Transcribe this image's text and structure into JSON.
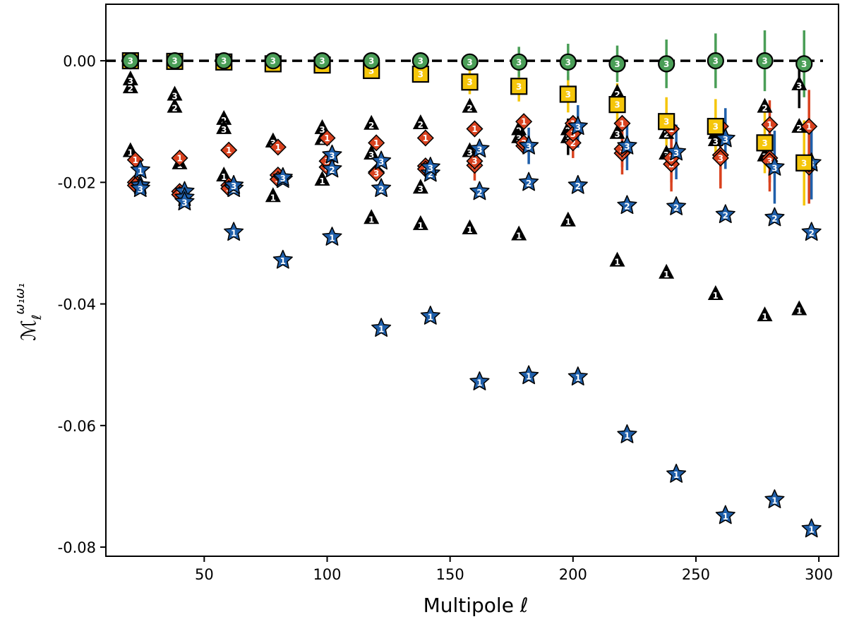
{
  "chart_data": {
    "type": "scatter",
    "title": "",
    "xlabel": "Multipole ℓ",
    "ylabel": "Mℓ^{ω1ω1}",
    "ylabel_main": "ℳ",
    "ylabel_sub": "ℓ",
    "ylabel_sup": "ω₁ω₁",
    "xlim": [
      10,
      308
    ],
    "ylim": [
      -0.0815,
      0.0093
    ],
    "xticks": [
      50,
      100,
      150,
      200,
      250,
      300
    ],
    "xtick_labels": [
      "50",
      "100",
      "150",
      "200",
      "250",
      "300"
    ],
    "yticks": [
      0.0,
      -0.02,
      -0.04,
      -0.06,
      -0.08
    ],
    "ytick_labels": [
      "0.00",
      "-0.02",
      "-0.04",
      "-0.06",
      "-0.08"
    ],
    "reference_line": {
      "y": 0.0,
      "style": "dashed",
      "color": "#000000"
    },
    "colors": {
      "black": "#000000",
      "red": "#d9421f",
      "blue": "#1f5faa",
      "yellow": "#f5c60a",
      "green": "#4a9e57"
    },
    "series": [
      {
        "name": "triangle-label-1",
        "marker": "triangle",
        "color": "#000000",
        "label": "1",
        "x": [
          20,
          40,
          58,
          78,
          98,
          118,
          138,
          158,
          178,
          198,
          218,
          238,
          258,
          278,
          292
        ],
        "y": [
          -0.0148,
          -0.0168,
          -0.0188,
          -0.0222,
          -0.0195,
          -0.0258,
          -0.0268,
          -0.0275,
          -0.0285,
          -0.0262,
          -0.0328,
          -0.0348,
          -0.0383,
          -0.0418,
          -0.0408
        ]
      },
      {
        "name": "triangle-label-2",
        "marker": "triangle",
        "color": "#000000",
        "label": "2",
        "x": [
          20,
          38,
          58,
          78,
          98,
          118,
          138,
          158,
          178,
          198,
          218,
          238,
          258,
          278,
          292
        ],
        "y": [
          -0.0043,
          -0.0075,
          -0.0095,
          -0.0132,
          -0.0128,
          -0.0103,
          -0.0102,
          -0.0075,
          -0.0112,
          -0.0112,
          -0.0052,
          -0.0118,
          -0.0118,
          -0.0075,
          -0.0108
        ],
        "err": [
          0,
          0,
          0,
          0,
          0,
          0,
          0,
          0,
          0,
          0,
          0,
          0,
          0.0025,
          0,
          0
        ]
      },
      {
        "name": "triangle-label-3",
        "marker": "triangle",
        "color": "#000000",
        "label": "3",
        "x": [
          20,
          38,
          58,
          78,
          98,
          118,
          138,
          158,
          178,
          198,
          218,
          238,
          258,
          278,
          292
        ],
        "y": [
          -0.003,
          -0.0055,
          -0.011,
          -0.0132,
          -0.011,
          -0.0152,
          -0.0208,
          -0.0148,
          -0.0125,
          -0.0125,
          -0.0118,
          -0.0152,
          -0.013,
          -0.0155,
          -0.0038
        ],
        "err": [
          0,
          0,
          0,
          0,
          0,
          0,
          0,
          0,
          0,
          0.003,
          0,
          0,
          0,
          0,
          0.004
        ]
      },
      {
        "name": "diamond-label-1",
        "marker": "diamond",
        "color": "#d9421f",
        "label": "1",
        "x": [
          22,
          40,
          60,
          80,
          100,
          120,
          140,
          160,
          180,
          200,
          220,
          240,
          260,
          280,
          296
        ],
        "y": [
          -0.0163,
          -0.016,
          -0.0147,
          -0.0142,
          -0.0127,
          -0.0135,
          -0.0127,
          -0.0112,
          -0.01,
          -0.0103,
          -0.0103,
          -0.0112,
          -0.0108,
          -0.0105,
          -0.0108
        ],
        "err": [
          0,
          0,
          0,
          0,
          0,
          0,
          0,
          0,
          0,
          0,
          0,
          0,
          0,
          0.004,
          0.006
        ]
      },
      {
        "name": "diamond-label-2",
        "marker": "diamond",
        "color": "#d9421f",
        "label": "2",
        "x": [
          22,
          40,
          60,
          80,
          100,
          120,
          140,
          160,
          180,
          200,
          220,
          240,
          260,
          280,
          296
        ],
        "y": [
          -0.02,
          -0.0215,
          -0.0205,
          -0.0188,
          -0.0175,
          -0.0183,
          -0.0173,
          -0.0172,
          -0.014,
          -0.0135,
          -0.0152,
          -0.017,
          -0.0155,
          -0.016,
          -0.0175
        ],
        "err": [
          0,
          0,
          0,
          0,
          0,
          0,
          0,
          0.0025,
          0,
          0.0025,
          0.0035,
          0.0045,
          0.005,
          0.004,
          0.006
        ]
      },
      {
        "name": "diamond-label-3",
        "marker": "diamond",
        "color": "#d9421f",
        "label": "3",
        "x": [
          22,
          40,
          60,
          80,
          100,
          120,
          140,
          160,
          180,
          200,
          220,
          240,
          260,
          280,
          296
        ],
        "y": [
          -0.0205,
          -0.022,
          -0.021,
          -0.0195,
          -0.0165,
          -0.0185,
          -0.0178,
          -0.0165,
          -0.0135,
          -0.012,
          -0.0145,
          -0.016,
          -0.016,
          -0.0165,
          -0.017
        ],
        "err": [
          0,
          0,
          0,
          0,
          0,
          0,
          0,
          0,
          0,
          0,
          0.003,
          0.004,
          0.005,
          0.005,
          0.006
        ]
      },
      {
        "name": "star-label-1",
        "marker": "star",
        "color": "#1f5faa",
        "label": "1",
        "x": [
          24,
          42,
          62,
          82,
          102,
          122,
          142,
          162,
          182,
          202,
          222,
          242,
          262,
          282,
          297
        ],
        "y": [
          -0.018,
          -0.0215,
          -0.0282,
          -0.0328,
          -0.029,
          -0.044,
          -0.042,
          -0.0528,
          -0.0518,
          -0.052,
          -0.0615,
          -0.068,
          -0.0748,
          -0.0722,
          -0.077
        ]
      },
      {
        "name": "star-label-2",
        "marker": "star",
        "color": "#1f5faa",
        "label": "2",
        "x": [
          24,
          42,
          62,
          82,
          102,
          122,
          142,
          162,
          182,
          202,
          222,
          242,
          262,
          282,
          297
        ],
        "y": [
          -0.0205,
          -0.0225,
          -0.021,
          -0.0195,
          -0.0178,
          -0.021,
          -0.0185,
          -0.0215,
          -0.02,
          -0.0205,
          -0.0238,
          -0.024,
          -0.0253,
          -0.0258,
          -0.0282
        ]
      },
      {
        "name": "star-label-3",
        "marker": "star",
        "color": "#1f5faa",
        "label": "3",
        "x": [
          24,
          42,
          62,
          82,
          102,
          122,
          142,
          162,
          182,
          202,
          222,
          242,
          262,
          282,
          297
        ],
        "y": [
          -0.021,
          -0.0232,
          -0.0205,
          -0.0192,
          -0.0155,
          -0.0165,
          -0.0175,
          -0.0145,
          -0.014,
          -0.0108,
          -0.014,
          -0.015,
          -0.0128,
          -0.0175,
          -0.0168
        ],
        "err": [
          0,
          0,
          0,
          0,
          0,
          0,
          0,
          0,
          0.003,
          0.0035,
          0.004,
          0.0045,
          0.005,
          0.006,
          0.006
        ]
      },
      {
        "name": "square-label-3",
        "marker": "square",
        "color": "#f5c60a",
        "label": "3",
        "x": [
          20,
          38,
          58,
          78,
          98,
          118,
          138,
          158,
          178,
          198,
          218,
          238,
          258,
          278,
          294
        ],
        "y": [
          0.0,
          -0.0001,
          -0.0002,
          -0.0005,
          -0.0007,
          -0.0016,
          -0.0022,
          -0.0035,
          -0.0042,
          -0.0055,
          -0.0072,
          -0.01,
          -0.0108,
          -0.0135,
          -0.0168
        ],
        "err": [
          0,
          0,
          0,
          0,
          0,
          0,
          0,
          0.002,
          0.0025,
          0.003,
          0.0035,
          0.004,
          0.0045,
          0.005,
          0.007
        ]
      },
      {
        "name": "circle-label-3",
        "marker": "circle",
        "color": "#4a9e57",
        "label": "3",
        "x": [
          20,
          38,
          58,
          78,
          98,
          118,
          138,
          158,
          178,
          198,
          218,
          238,
          258,
          278,
          294
        ],
        "y": [
          0.0,
          0.0,
          0.0,
          0.0,
          0.0,
          0.0,
          0.0,
          -0.0002,
          -0.0002,
          -0.0002,
          -0.0005,
          -0.0005,
          0.0,
          0.0,
          -0.0005
        ],
        "err": [
          0,
          0,
          0,
          0,
          0,
          0,
          0,
          0,
          0.0025,
          0.003,
          0.003,
          0.004,
          0.0045,
          0.005,
          0.0055
        ]
      }
    ]
  }
}
